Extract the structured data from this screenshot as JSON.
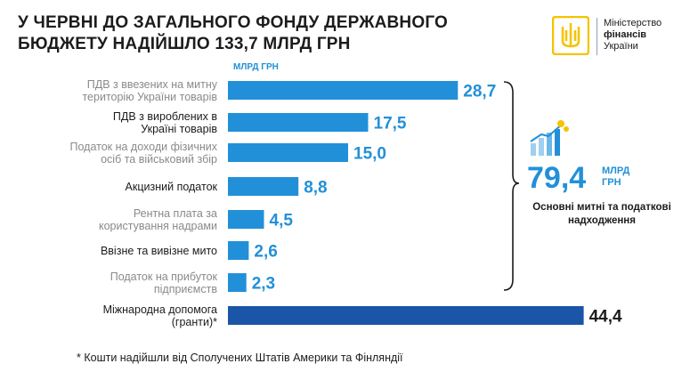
{
  "title": "У ЧЕРВНІ ДО ЗАГАЛЬНОГО ФОНДУ ДЕРЖАВНОГО БЮДЖЕТУ НАДІЙШЛО 133,7 МЛРД ГРН",
  "logo": {
    "line1": "Міністерство",
    "line2": "фінансів",
    "line3": "України"
  },
  "summary": {
    "value": "79,4",
    "unit": "МЛРД ГРН",
    "caption": "Основні митні та податкові надходження"
  },
  "footnote": "* Кошти надійшли від Сполучених Штатів Америки та Фінляндії",
  "colors": {
    "accent": "#2290d8",
    "dark_bar": "#1a55a8",
    "muted_label": "#8a8a8a",
    "text": "#1c1c1c"
  },
  "chart_data": {
    "type": "bar",
    "orientation": "horizontal",
    "unit_label": "МЛРД ГРН",
    "categories": [
      [
        "ПДВ з ввезених на митну",
        "територію України товарів"
      ],
      [
        "ПДВ з вироблених в",
        "Україні товарів"
      ],
      [
        "Податок на доходи фізичних",
        "осіб та військовий збір"
      ],
      [
        "Акцизний податок"
      ],
      [
        "Рентна плата за",
        "користування надрами"
      ],
      [
        "Ввізне та вивізне мито"
      ],
      [
        "Податок на прибуток",
        "підприємств"
      ],
      [
        "Міжнародна допомога",
        "(гранти)*"
      ]
    ],
    "values": [
      28.7,
      17.5,
      15.0,
      8.8,
      4.5,
      2.6,
      2.3,
      44.4
    ],
    "value_labels": [
      "28,7",
      "17,5",
      "15,0",
      "8,8",
      "4,5",
      "2,6",
      "2,3",
      "44,4"
    ],
    "label_muted": [
      true,
      false,
      true,
      false,
      true,
      false,
      true,
      false
    ],
    "bar_style": [
      "accent",
      "accent",
      "accent",
      "accent",
      "accent",
      "accent",
      "accent",
      "dark"
    ]
  }
}
